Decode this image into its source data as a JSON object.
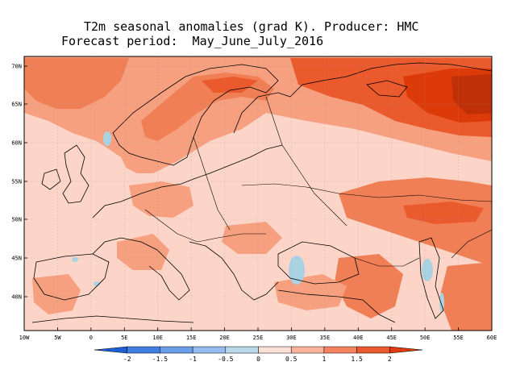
{
  "title_line1": "T2m seasonal anomalies (grad K). Producer: HMC",
  "title_line2": "Forecast period:  May_June_July_2016",
  "lat_labels": [
    "70N",
    "65N",
    "60N",
    "55N",
    "50N",
    "45N",
    "40N"
  ],
  "lon_labels": [
    "10W",
    "5W",
    "0",
    "5E",
    "10E",
    "15E",
    "20E",
    "25E",
    "30E",
    "35E",
    "40E",
    "45E",
    "50E",
    "55E",
    "60E"
  ],
  "colorbar": {
    "tick_labels": [
      "-2",
      "-1.5",
      "-1",
      "-0.5",
      "0",
      "0.5",
      "1",
      "1.5",
      "2"
    ],
    "colors": [
      "#1e5fd6",
      "#3f7fe3",
      "#6a9ee9",
      "#96bcef",
      "#b9d9e8",
      "#fde0d6",
      "#fbb49c",
      "#f4845f",
      "#ea5a2c",
      "#e03a10"
    ]
  },
  "palette": {
    "light_pink": "#fcd5c8",
    "salmon": "#f6a080",
    "orange": "#f07f55",
    "deep_orange": "#e8501e",
    "red_orange": "#dc3a08",
    "dark_red": "#bf2f08",
    "light_blue": "#a9d2e3"
  }
}
